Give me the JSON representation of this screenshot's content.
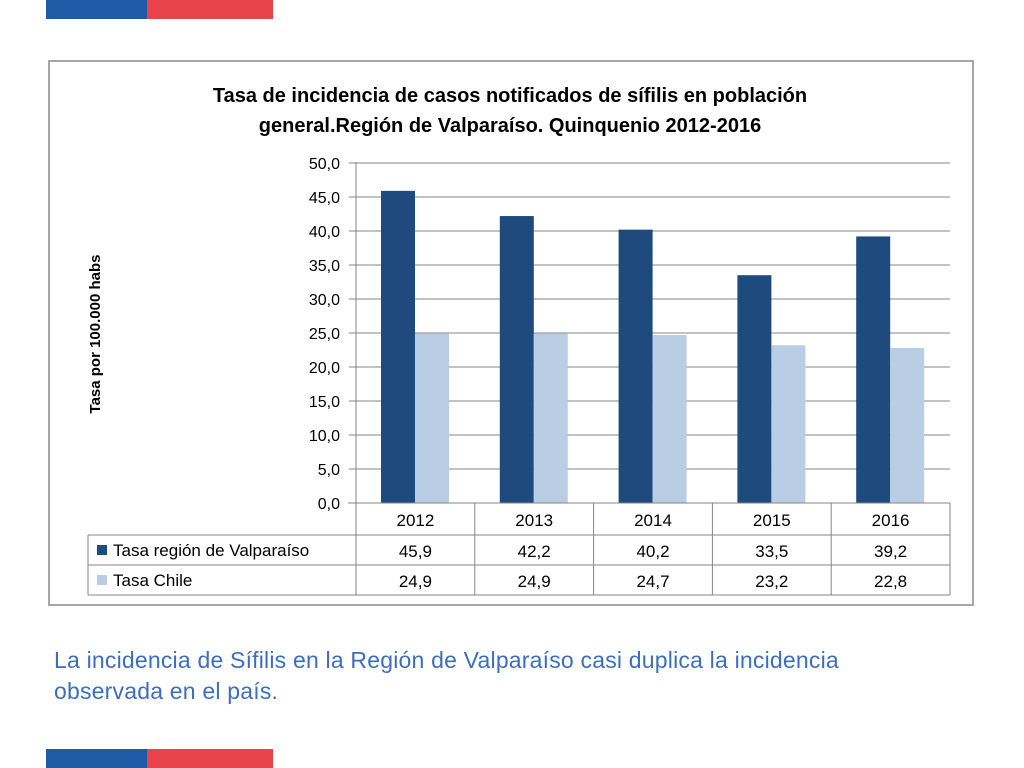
{
  "colors": {
    "flag_blue": "#1f5aa6",
    "flag_red": "#e8424a",
    "series_region": "#1f4a7d",
    "series_chile": "#b9cde4",
    "caption_text": "#3d6ebe"
  },
  "chart_data": {
    "type": "bar",
    "title_line1": "Tasa de incidencia  de casos notificados de sífilis en población",
    "title_line2": "general.Región de Valparaíso. Quinquenio  2012-2016",
    "ylabel": "Tasa por 100.000 habs",
    "ylim": [
      0,
      50
    ],
    "y_ticks": [
      "0,0",
      "5,0",
      "10,0",
      "15,0",
      "20,0",
      "25,0",
      "30,0",
      "35,0",
      "40,0",
      "45,0",
      "50,0"
    ],
    "grid": true,
    "legend": "data-table",
    "categories": [
      "2012",
      "2013",
      "2014",
      "2015",
      "2016"
    ],
    "series": [
      {
        "name": "Tasa región de Valparaíso",
        "values": [
          45.9,
          42.2,
          40.2,
          33.5,
          39.2
        ],
        "labels": [
          "45,9",
          "42,2",
          "40,2",
          "33,5",
          "39,2"
        ]
      },
      {
        "name": "Tasa Chile",
        "values": [
          24.9,
          24.9,
          24.7,
          23.2,
          22.8
        ],
        "labels": [
          "24,9",
          "24,9",
          "24,7",
          "23,2",
          "22,8"
        ]
      }
    ]
  },
  "caption": "La incidencia de Sífilis en la Región de Valparaíso casi duplica la incidencia observada en el país."
}
